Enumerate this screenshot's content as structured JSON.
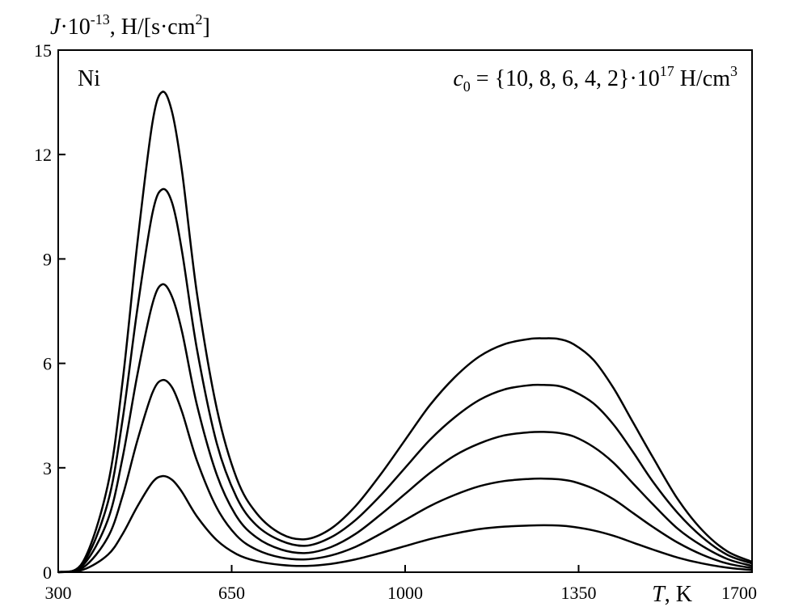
{
  "chart_data": {
    "type": "line",
    "ylabel_parts": {
      "var": "J",
      "mult": "·10",
      "exp": "-13",
      "unit_a": ", H/[s·cm",
      "unit_exp": "2",
      "unit_b": "]"
    },
    "xlabel_parts": {
      "var": "T",
      "unit": ", K"
    },
    "material_label": "Ni",
    "concentration_label": {
      "var": "c",
      "sub": "0",
      "text": " = {10, 8, 6, 4, 2}·10",
      "exp": "17",
      "unit": " H/cm",
      "unit_exp": "3"
    },
    "xlim": [
      300,
      1700
    ],
    "ylim": [
      0,
      15
    ],
    "x_ticks": [
      300,
      650,
      1000,
      1350,
      1700
    ],
    "y_ticks": [
      0,
      3,
      6,
      9,
      12,
      15
    ],
    "line_color": "#000000",
    "grid": false,
    "series": [
      {
        "c0": 10,
        "x": [
          300,
          350,
          400,
          430,
          460,
          490,
          510,
          530,
          550,
          580,
          620,
          660,
          700,
          750,
          800,
          850,
          900,
          950,
          1000,
          1050,
          1100,
          1150,
          1200,
          1250,
          1280,
          1310,
          1340,
          1380,
          1420,
          1460,
          1500,
          1550,
          1600,
          1650,
          1700
        ],
        "y": [
          0,
          0.3,
          2.5,
          5.5,
          9.5,
          12.9,
          13.8,
          13.2,
          11.5,
          8.0,
          4.7,
          2.7,
          1.7,
          1.1,
          0.95,
          1.25,
          1.9,
          2.8,
          3.8,
          4.8,
          5.6,
          6.2,
          6.55,
          6.7,
          6.72,
          6.7,
          6.55,
          6.1,
          5.3,
          4.3,
          3.3,
          2.1,
          1.2,
          0.6,
          0.3
        ]
      },
      {
        "c0": 8,
        "x": [
          300,
          350,
          400,
          430,
          460,
          490,
          510,
          530,
          550,
          580,
          620,
          660,
          700,
          750,
          800,
          850,
          900,
          950,
          1000,
          1050,
          1100,
          1150,
          1200,
          1250,
          1280,
          1310,
          1340,
          1380,
          1420,
          1460,
          1500,
          1550,
          1600,
          1650,
          1700
        ],
        "y": [
          0,
          0.25,
          2.0,
          4.4,
          7.6,
          10.3,
          11.0,
          10.6,
          9.2,
          6.4,
          3.7,
          2.15,
          1.35,
          0.9,
          0.76,
          1.0,
          1.5,
          2.2,
          3.0,
          3.8,
          4.45,
          4.95,
          5.25,
          5.37,
          5.38,
          5.35,
          5.2,
          4.85,
          4.25,
          3.45,
          2.6,
          1.7,
          1.0,
          0.5,
          0.25
        ]
      },
      {
        "c0": 6,
        "x": [
          300,
          350,
          400,
          430,
          460,
          490,
          510,
          530,
          550,
          580,
          620,
          660,
          700,
          750,
          800,
          850,
          900,
          950,
          1000,
          1050,
          1100,
          1150,
          1200,
          1250,
          1280,
          1310,
          1340,
          1380,
          1420,
          1460,
          1500,
          1550,
          1600,
          1650,
          1700
        ],
        "y": [
          0,
          0.2,
          1.5,
          3.3,
          5.7,
          7.7,
          8.27,
          7.9,
          6.9,
          4.8,
          2.8,
          1.6,
          1.0,
          0.65,
          0.55,
          0.72,
          1.1,
          1.65,
          2.25,
          2.85,
          3.35,
          3.7,
          3.93,
          4.02,
          4.03,
          4.0,
          3.9,
          3.6,
          3.15,
          2.55,
          1.95,
          1.25,
          0.75,
          0.38,
          0.18
        ]
      },
      {
        "c0": 4,
        "x": [
          300,
          350,
          400,
          430,
          460,
          490,
          510,
          530,
          550,
          580,
          620,
          660,
          700,
          750,
          800,
          850,
          900,
          950,
          1000,
          1050,
          1100,
          1150,
          1200,
          1250,
          1280,
          1310,
          1340,
          1380,
          1420,
          1460,
          1500,
          1550,
          1600,
          1650,
          1700
        ],
        "y": [
          0,
          0.13,
          1.0,
          2.2,
          3.8,
          5.15,
          5.52,
          5.3,
          4.6,
          3.2,
          1.85,
          1.05,
          0.65,
          0.42,
          0.37,
          0.48,
          0.73,
          1.1,
          1.5,
          1.9,
          2.22,
          2.47,
          2.62,
          2.68,
          2.69,
          2.67,
          2.6,
          2.4,
          2.1,
          1.7,
          1.3,
          0.85,
          0.5,
          0.25,
          0.12
        ]
      },
      {
        "c0": 2,
        "x": [
          300,
          350,
          400,
          430,
          460,
          490,
          510,
          530,
          550,
          580,
          620,
          660,
          700,
          750,
          800,
          850,
          900,
          950,
          1000,
          1050,
          1100,
          1150,
          1200,
          1250,
          1280,
          1310,
          1340,
          1380,
          1420,
          1460,
          1500,
          1550,
          1600,
          1650,
          1700
        ],
        "y": [
          0,
          0.07,
          0.5,
          1.1,
          1.9,
          2.58,
          2.76,
          2.65,
          2.3,
          1.6,
          0.92,
          0.52,
          0.32,
          0.21,
          0.18,
          0.24,
          0.37,
          0.55,
          0.75,
          0.95,
          1.11,
          1.24,
          1.31,
          1.34,
          1.35,
          1.34,
          1.3,
          1.2,
          1.05,
          0.85,
          0.65,
          0.42,
          0.25,
          0.13,
          0.06
        ]
      }
    ]
  }
}
